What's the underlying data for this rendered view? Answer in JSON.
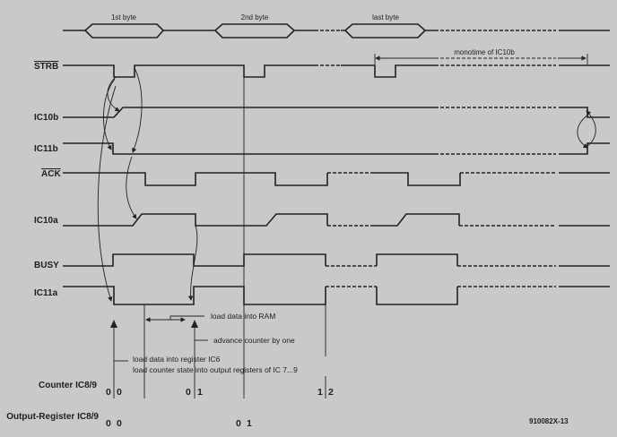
{
  "bytes": {
    "first": "1st byte",
    "second": "2nd byte",
    "last": "last byte"
  },
  "monotime": "monotime of IC10b",
  "signals": {
    "strb": "STRB",
    "ic10b": "IC10b",
    "ic11b": "IC11b",
    "ack": "ACK",
    "ic10a": "IC10a",
    "busy": "BUSY",
    "ic11a": "IC11a"
  },
  "annotations": {
    "load_ram": "load data into RAM",
    "advance": "advance counter by one",
    "load_reg": "load data into register IC6",
    "load_counter": "load counter state into output  registers of IC 7...9"
  },
  "rows": {
    "counter": {
      "label": "Counter IC8/9",
      "values": [
        "0",
        "0",
        "0",
        "1",
        "1",
        "2"
      ]
    },
    "output": {
      "label": "Output-Register IC8/9",
      "values": [
        "0",
        "0",
        "0",
        "1"
      ]
    }
  },
  "figure_id": "910082X-13"
}
